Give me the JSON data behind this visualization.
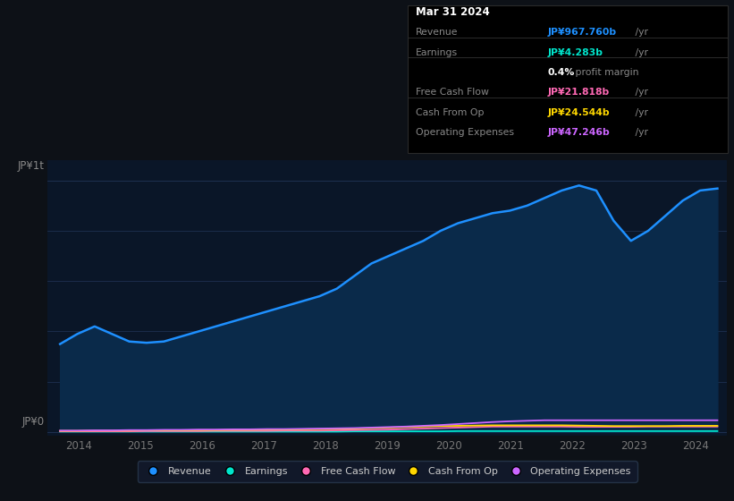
{
  "background_color": "#0d1117",
  "plot_bg_color": "#0a1628",
  "grid_color": "#1e3050",
  "y_label_top": "JP¥1t",
  "y_label_bottom": "JP¥0",
  "x_ticks": [
    "2014",
    "2015",
    "2016",
    "2017",
    "2018",
    "2019",
    "2020",
    "2021",
    "2022",
    "2023",
    "2024"
  ],
  "revenue": [
    350,
    390,
    420,
    390,
    360,
    355,
    360,
    380,
    400,
    420,
    440,
    460,
    480,
    500,
    520,
    540,
    570,
    620,
    670,
    700,
    730,
    760,
    800,
    830,
    850,
    870,
    880,
    900,
    930,
    960,
    980,
    960,
    840,
    760,
    800,
    860,
    920,
    960,
    968
  ],
  "revenue_color": "#1e90ff",
  "earnings": [
    2,
    2,
    2,
    2,
    2,
    2,
    2,
    2,
    2,
    2,
    2,
    2,
    2,
    2,
    2,
    2,
    2,
    3,
    3,
    3,
    3,
    3,
    3,
    4,
    4,
    4,
    4,
    4,
    4,
    4,
    4,
    4,
    4,
    4,
    4,
    4,
    4,
    4,
    4
  ],
  "earnings_color": "#00e5cc",
  "free_cash_flow": [
    3,
    3,
    3,
    3,
    3,
    4,
    4,
    4,
    4,
    5,
    5,
    5,
    5,
    6,
    6,
    6,
    7,
    8,
    9,
    10,
    12,
    14,
    16,
    18,
    20,
    22,
    22,
    22,
    22,
    22,
    21,
    21,
    21,
    21,
    22,
    22,
    22,
    22,
    22
  ],
  "free_cash_flow_color": "#ff69b4",
  "cash_from_op": [
    5,
    5,
    6,
    6,
    6,
    7,
    7,
    7,
    8,
    8,
    9,
    9,
    10,
    10,
    11,
    12,
    13,
    14,
    16,
    18,
    20,
    22,
    24,
    25,
    26,
    27,
    27,
    27,
    27,
    27,
    26,
    25,
    24,
    24,
    24,
    24,
    25,
    25,
    25
  ],
  "cash_from_op_color": "#ffd700",
  "op_expenses": [
    6,
    6,
    7,
    7,
    8,
    8,
    9,
    9,
    10,
    10,
    11,
    11,
    12,
    12,
    13,
    14,
    15,
    16,
    18,
    20,
    22,
    25,
    28,
    32,
    36,
    40,
    43,
    45,
    47,
    47,
    47,
    47,
    47,
    47,
    47,
    47,
    47,
    47,
    47
  ],
  "op_expenses_color": "#cc66ff",
  "legend": [
    {
      "label": "Revenue",
      "color": "#1e90ff"
    },
    {
      "label": "Earnings",
      "color": "#00e5cc"
    },
    {
      "label": "Free Cash Flow",
      "color": "#ff69b4"
    },
    {
      "label": "Cash From Op",
      "color": "#ffd700"
    },
    {
      "label": "Operating Expenses",
      "color": "#cc66ff"
    }
  ],
  "info_box": {
    "date": "Mar 31 2024",
    "rows": [
      {
        "label": "Revenue",
        "value": "JP¥967.760b",
        "value_color": "#1e90ff"
      },
      {
        "label": "Earnings",
        "value": "JP¥4.283b",
        "value_color": "#00e5cc"
      },
      {
        "label": "",
        "value": "0.4%",
        "margin_text": " profit margin",
        "value_color": "#ffffff"
      },
      {
        "label": "Free Cash Flow",
        "value": "JP¥21.818b",
        "value_color": "#ff69b4"
      },
      {
        "label": "Cash From Op",
        "value": "JP¥24.544b",
        "value_color": "#ffd700"
      },
      {
        "label": "Operating Expenses",
        "value": "JP¥47.246b",
        "value_color": "#cc66ff"
      }
    ]
  }
}
